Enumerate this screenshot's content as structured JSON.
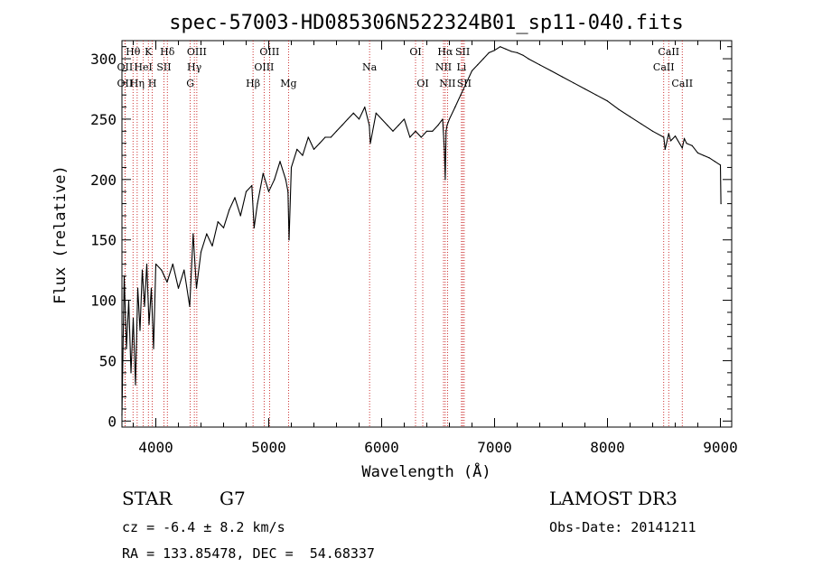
{
  "chart_data": {
    "type": "line",
    "title": "spec-57003-HD085306N522324B01_sp11-040.fits",
    "xlabel": "Wavelength (Å)",
    "ylabel": "Flux (relative)",
    "xlim": [
      3700,
      9100
    ],
    "ylim": [
      -5,
      315
    ],
    "xticks": [
      4000,
      5000,
      6000,
      7000,
      8000,
      9000
    ],
    "yticks": [
      0,
      50,
      100,
      150,
      200,
      250,
      300
    ],
    "series": [
      {
        "name": "spectrum",
        "x": [
          3700,
          3720,
          3740,
          3760,
          3780,
          3800,
          3820,
          3840,
          3860,
          3880,
          3900,
          3920,
          3940,
          3960,
          3980,
          4000,
          4050,
          4100,
          4150,
          4200,
          4250,
          4300,
          4330,
          4360,
          4400,
          4450,
          4500,
          4550,
          4600,
          4650,
          4700,
          4750,
          4800,
          4850,
          4870,
          4900,
          4950,
          5000,
          5050,
          5100,
          5150,
          5170,
          5180,
          5200,
          5250,
          5300,
          5350,
          5400,
          5450,
          5500,
          5550,
          5600,
          5650,
          5700,
          5750,
          5800,
          5850,
          5890,
          5900,
          5950,
          6000,
          6050,
          6100,
          6150,
          6200,
          6250,
          6300,
          6350,
          6400,
          6450,
          6500,
          6540,
          6555,
          6563,
          6570,
          6580,
          6600,
          6650,
          6700,
          6750,
          6800,
          6850,
          6900,
          6950,
          7000,
          7050,
          7100,
          7150,
          7200,
          7250,
          7300,
          7400,
          7500,
          7600,
          7700,
          7800,
          7900,
          8000,
          8100,
          8200,
          8300,
          8400,
          8498,
          8510,
          8542,
          8560,
          8600,
          8662,
          8680,
          8700,
          8750,
          8800,
          8850,
          8900,
          8950,
          9000,
          9005
        ],
        "values": [
          5,
          120,
          60,
          100,
          40,
          85,
          30,
          110,
          75,
          125,
          95,
          130,
          80,
          110,
          60,
          130,
          125,
          115,
          130,
          110,
          125,
          95,
          155,
          110,
          140,
          155,
          145,
          165,
          160,
          175,
          185,
          170,
          190,
          195,
          160,
          180,
          205,
          190,
          200,
          215,
          200,
          190,
          150,
          210,
          225,
          220,
          235,
          225,
          230,
          235,
          235,
          240,
          245,
          250,
          255,
          250,
          260,
          245,
          230,
          255,
          250,
          245,
          240,
          245,
          250,
          235,
          240,
          235,
          240,
          240,
          245,
          250,
          225,
          200,
          240,
          245,
          250,
          260,
          270,
          280,
          290,
          295,
          300,
          305,
          307,
          310,
          308,
          306,
          305,
          303,
          300,
          295,
          290,
          285,
          280,
          275,
          270,
          265,
          258,
          252,
          246,
          240,
          235,
          225,
          238,
          232,
          236,
          226,
          234,
          230,
          228,
          222,
          220,
          218,
          215,
          212,
          180
        ]
      }
    ],
    "spectral_lines": [
      {
        "label": "Hθ",
        "x": 3798,
        "row": 1
      },
      {
        "label": "OII",
        "x": 3727,
        "row": 2
      },
      {
        "label": "OII",
        "x": 3727,
        "row": 3
      },
      {
        "label": "Hη",
        "x": 3835,
        "row": 3
      },
      {
        "label": "HeI",
        "x": 3889,
        "row": 2
      },
      {
        "label": "K",
        "x": 3934,
        "row": 1
      },
      {
        "label": "H",
        "x": 3969,
        "row": 3
      },
      {
        "label": "SII",
        "x": 4072,
        "row": 2
      },
      {
        "label": "Hδ",
        "x": 4102,
        "row": 1
      },
      {
        "label": "OIII",
        "x": 4363,
        "row": 1
      },
      {
        "label": "Hγ",
        "x": 4341,
        "row": 2
      },
      {
        "label": "G",
        "x": 4305,
        "row": 3
      },
      {
        "label": "Hβ",
        "x": 4861,
        "row": 3
      },
      {
        "label": "OIII",
        "x": 5007,
        "row": 1
      },
      {
        "label": "OIII",
        "x": 4959,
        "row": 2
      },
      {
        "label": "Mg",
        "x": 5175,
        "row": 3
      },
      {
        "label": "Na",
        "x": 5893,
        "row": 2
      },
      {
        "label": "OI",
        "x": 6300,
        "row": 1
      },
      {
        "label": "OI",
        "x": 6364,
        "row": 3
      },
      {
        "label": "Hα",
        "x": 6563,
        "row": 1
      },
      {
        "label": "NII",
        "x": 6548,
        "row": 2
      },
      {
        "label": "NII",
        "x": 6583,
        "row": 3
      },
      {
        "label": "SII",
        "x": 6717,
        "row": 1
      },
      {
        "label": "Li",
        "x": 6707,
        "row": 2
      },
      {
        "label": "SII",
        "x": 6731,
        "row": 3
      },
      {
        "label": "CaII",
        "x": 8542,
        "row": 1
      },
      {
        "label": "CaII",
        "x": 8498,
        "row": 2
      },
      {
        "label": "CaII",
        "x": 8662,
        "row": 3
      }
    ]
  },
  "info": {
    "object_type": "STAR",
    "subclass": "G7",
    "survey": "LAMOST DR3",
    "cz_line": "cz = -6.4 ± 8.2 km/s",
    "obs_date": "Obs-Date: 20141211",
    "coords_line": "RA = 133.85478, DEC =  54.68337"
  },
  "colors": {
    "spectrum": "#000000",
    "line_markers": "#c00000",
    "axes": "#000000"
  }
}
